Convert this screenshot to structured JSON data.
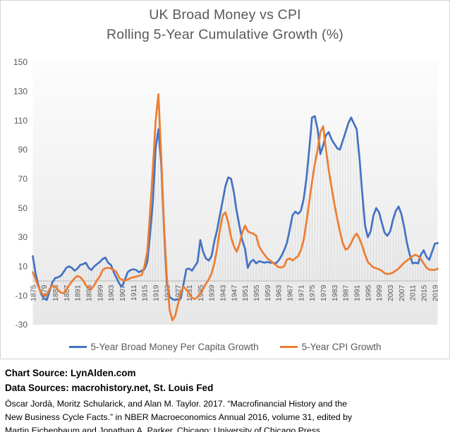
{
  "title": {
    "line1": "UK Broad Money vs CPI",
    "line2": "Rolling 5-Year Cumulative Growth (%)"
  },
  "legend": [
    {
      "label": "5-Year Broad Money Per Capita Growth",
      "color": "#4472C4"
    },
    {
      "label": "5-Year CPI Growth",
      "color": "#ED7D31"
    }
  ],
  "footer": {
    "chart_source": "Chart Source: LynAlden.com",
    "data_sources": "Data Sources: macrohistory.net, St. Louis Fed",
    "citation_lines": [
      "Òscar Jordà, Moritz Schularick, and Alan M. Taylor. 2017. “Macrofinancial History and the",
      "New Business Cycle Facts.” in NBER Macroeconomics Annual 2016, volume 31, edited by",
      "Martin Eichenbaum and Jonathan A. Parker. Chicago: University of Chicago Press."
    ]
  },
  "colors": {
    "broad_money_line": "#4472C4",
    "cpi_line": "#ED7D31",
    "axis_text": "#595959",
    "title_text": "#595959",
    "drop_line": "#d7d7d7",
    "zero_axis_line": "#b8b8b8",
    "plot_bg_top": "#fcfcfc",
    "plot_bg_bottom": "#e7e7e7"
  },
  "chart_data": {
    "type": "line",
    "title": "UK Broad Money vs CPI — Rolling 5-Year Cumulative Growth (%)",
    "x_start": 1875,
    "x_end": 2020,
    "x_step": 1,
    "x_tick_interval": 4,
    "x_tick_labels": [
      "1875",
      "1879",
      "1883",
      "1887",
      "1891",
      "1895",
      "1899",
      "1903",
      "1907",
      "1911",
      "1915",
      "1919",
      "1923",
      "1927",
      "1931",
      "1935",
      "1939",
      "1943",
      "1947",
      "1951",
      "1955",
      "1959",
      "1963",
      "1967",
      "1971",
      "1975",
      "1979",
      "1983",
      "1987",
      "1991",
      "1995",
      "1999",
      "2003",
      "2007",
      "2011",
      "2015",
      "2019"
    ],
    "ylim": [
      -30,
      150
    ],
    "y_ticks": [
      150,
      130,
      110,
      90,
      70,
      50,
      30,
      10,
      -10,
      -30
    ],
    "grid": "vertical drop lines from series extremes to zero axis, one per year; no visible horizontal gridlines",
    "legend_position": "bottom",
    "series": [
      {
        "name": "5-Year Broad Money Per Capita Growth",
        "color": "#4472C4",
        "values": [
          17,
          5,
          -3,
          -9,
          -12,
          -13,
          -7,
          -1,
          2,
          2.5,
          3.5,
          6,
          9,
          10,
          9,
          7,
          8.5,
          11,
          11.5,
          12.5,
          9,
          7.5,
          10,
          11.5,
          13,
          15,
          16,
          12.5,
          11,
          6,
          2,
          -2,
          -4,
          1,
          6,
          7.5,
          8,
          7.5,
          6,
          7,
          8,
          13,
          32,
          54,
          91,
          104,
          80,
          35,
          -2,
          -11,
          -12.5,
          -13,
          -12.5,
          -12,
          -2,
          8,
          8.5,
          7,
          10,
          13,
          28,
          20,
          15.5,
          14,
          17,
          27,
          35,
          45,
          55,
          65,
          71,
          70,
          61,
          48,
          38,
          28,
          22,
          9,
          13,
          14.5,
          12,
          13.5,
          13,
          12.5,
          13,
          12.5,
          12.5,
          12,
          14,
          17,
          21,
          26,
          35,
          45,
          47.5,
          46,
          48,
          56,
          70,
          90,
          112,
          113,
          104,
          87,
          93,
          100,
          102,
          97,
          94,
          91,
          90,
          96,
          102,
          108,
          112,
          108,
          104,
          84,
          60,
          38,
          30,
          34,
          45,
          50,
          47,
          40,
          33,
          31,
          34,
          42,
          48,
          51,
          46,
          37,
          26,
          18,
          12,
          12.5,
          12,
          18,
          21,
          16.5,
          14.5,
          20,
          25.5,
          26
        ]
      },
      {
        "name": "5-Year CPI Growth",
        "color": "#ED7D31",
        "values": [
          6,
          1,
          -4,
          -8,
          -10,
          -9.5,
          -5.5,
          -3,
          -4,
          -6,
          -8,
          -8.5,
          -6,
          -3,
          -0.5,
          2,
          3.5,
          2.5,
          0.5,
          -3,
          -4.5,
          -5.5,
          -3,
          0.5,
          3,
          7.5,
          8.7,
          9,
          8.5,
          7.5,
          6,
          2,
          0.8,
          0.3,
          1,
          2,
          2.5,
          3,
          3.5,
          4,
          10,
          20,
          47,
          77,
          110,
          128,
          85,
          38,
          3,
          -20,
          -27,
          -24,
          -16,
          -8,
          -4,
          -6,
          -8.5,
          -11.5,
          -12.5,
          -11,
          -8.5,
          -5.5,
          -2,
          1,
          5,
          12,
          22,
          35,
          45,
          47,
          40,
          30,
          24,
          20,
          25,
          33,
          38,
          34,
          33,
          32.5,
          31,
          24,
          20.5,
          18,
          15.5,
          14,
          12.5,
          11,
          9.5,
          9.2,
          10,
          14.5,
          15.5,
          14,
          15.5,
          17,
          21,
          28,
          40,
          54,
          68,
          80,
          90,
          102,
          106,
          90,
          76,
          64,
          53,
          43,
          34,
          26,
          21.5,
          22.5,
          26,
          30,
          32.5,
          29,
          24,
          18,
          13,
          11,
          9.3,
          8.7,
          8,
          7,
          5.3,
          4.7,
          5,
          5.8,
          7,
          8.5,
          10.5,
          12.5,
          14,
          15.5,
          17,
          18,
          17,
          15,
          12,
          9,
          7.8,
          7.6,
          7.6,
          8.4
        ]
      }
    ]
  }
}
